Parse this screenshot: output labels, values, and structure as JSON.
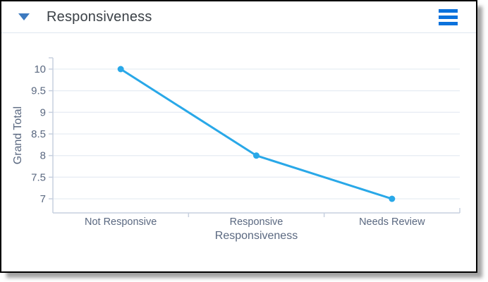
{
  "header": {
    "title": "Responsiveness",
    "collapse_icon": "caret-down",
    "menu_icon": "hamburger-menu"
  },
  "colors": {
    "line": "#29A8E8",
    "marker": "#29A8E8",
    "hamburger_blue": "#0B72DC",
    "caret_blue": "#3D7AC0",
    "axis_line": "#C7D0DF",
    "gridline": "#E8EDF4",
    "axis_text": "#5A6880",
    "title_text": "#3B4147",
    "divider": "#DFE7EF"
  },
  "chart_data": {
    "type": "line",
    "categories": [
      "Not Responsive",
      "Responsive",
      "Needs Review"
    ],
    "values": [
      10,
      8,
      7
    ],
    "title": "Responsiveness",
    "xlabel": "Responsiveness",
    "ylabel": "Grand Total",
    "ylim": [
      7,
      10
    ],
    "yticks": [
      7,
      7.5,
      8,
      8.5,
      9,
      9.5,
      10
    ],
    "grid": true,
    "legend_position": "none"
  }
}
